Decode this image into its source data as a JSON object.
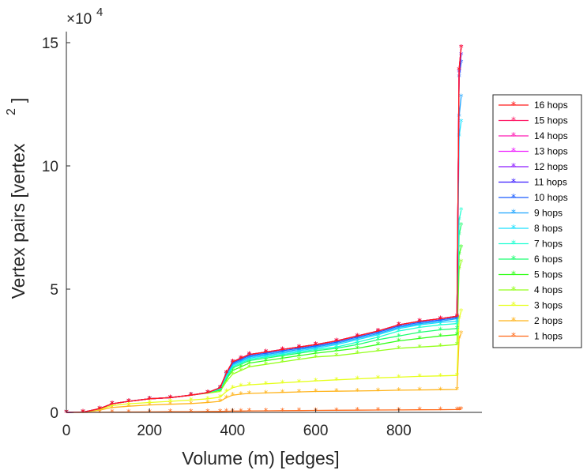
{
  "chart_data": {
    "type": "line",
    "xlabel": "Volume (m) [edges]",
    "ylabel": "Vertex pairs [vertex",
    "ylabel_sup": "2",
    "ylabel_close": "]",
    "exponent_base": "×10",
    "exponent_power": "4",
    "xlim": [
      0,
      1000
    ],
    "ylim": [
      0,
      150000
    ],
    "x_ticks": [
      "0",
      "200",
      "400",
      "600",
      "800"
    ],
    "x_tick_values": [
      0,
      200,
      400,
      600,
      800
    ],
    "y_ticks": [
      "0",
      "5",
      "10",
      "15"
    ],
    "y_tick_values": [
      0,
      50000,
      100000,
      150000
    ],
    "legend_position": "right",
    "x": [
      0,
      40,
      80,
      110,
      150,
      200,
      250,
      300,
      340,
      370,
      385,
      400,
      420,
      440,
      480,
      520,
      560,
      600,
      650,
      700,
      750,
      800,
      850,
      900,
      940,
      945,
      950
    ],
    "series": [
      {
        "name": "16 hops",
        "color": "#ff1a1a",
        "values": [
          0,
          100,
          1500,
          3500,
          4500,
          5500,
          6000,
          7000,
          8000,
          10000,
          16000,
          20500,
          22000,
          23500,
          24500,
          25500,
          26500,
          27500,
          29000,
          31000,
          33000,
          35500,
          37000,
          38000,
          39000,
          139000,
          148000
        ]
      },
      {
        "name": "15 hops",
        "color": "#ff1a66",
        "values": [
          0,
          100,
          1500,
          3500,
          4500,
          5500,
          6000,
          7000,
          8000,
          10000,
          16000,
          20500,
          22000,
          23500,
          24500,
          25500,
          26500,
          27500,
          29000,
          31000,
          33000,
          35500,
          37000,
          38000,
          39000,
          139000,
          148000
        ]
      },
      {
        "name": "14 hops",
        "color": "#ff1ab3",
        "values": [
          0,
          100,
          1500,
          3500,
          4500,
          5500,
          6000,
          7000,
          8000,
          10000,
          16000,
          20500,
          22000,
          23500,
          24500,
          25500,
          26500,
          27500,
          29000,
          31000,
          33000,
          35500,
          37000,
          38000,
          39000,
          139000,
          148000
        ]
      },
      {
        "name": "13 hops",
        "color": "#ee1aff",
        "values": [
          0,
          100,
          1500,
          3500,
          4500,
          5500,
          6000,
          7000,
          8000,
          10000,
          16000,
          20500,
          22000,
          23500,
          24500,
          25500,
          26500,
          27500,
          29000,
          31000,
          33000,
          35500,
          37000,
          38000,
          39000,
          139000,
          148000
        ]
      },
      {
        "name": "12 hops",
        "color": "#8c1aff",
        "values": [
          0,
          100,
          1500,
          3500,
          4500,
          5500,
          6000,
          7000,
          8000,
          10000,
          16000,
          20500,
          22000,
          23500,
          24500,
          25500,
          26500,
          27500,
          29000,
          31000,
          33000,
          35500,
          37000,
          38000,
          39000,
          139000,
          148000
        ]
      },
      {
        "name": "11 hops",
        "color": "#3a1aff",
        "values": [
          0,
          100,
          1500,
          3500,
          4500,
          5500,
          6000,
          7000,
          8000,
          10000,
          16000,
          20500,
          22000,
          23500,
          24500,
          25500,
          26500,
          27500,
          29000,
          31000,
          33000,
          35500,
          37000,
          38000,
          39000,
          138000,
          145000
        ]
      },
      {
        "name": "10 hops",
        "color": "#1a5cff",
        "values": [
          0,
          100,
          1500,
          3500,
          4500,
          5500,
          6000,
          7000,
          8000,
          10000,
          16000,
          20000,
          21500,
          23000,
          24000,
          25000,
          26000,
          27000,
          28500,
          30500,
          32500,
          35000,
          36500,
          37500,
          38500,
          136000,
          142000
        ]
      },
      {
        "name": "9 hops",
        "color": "#1aa3ff",
        "values": [
          0,
          100,
          1500,
          3500,
          4500,
          5500,
          6000,
          7000,
          8000,
          10000,
          15500,
          19500,
          21000,
          22500,
          23500,
          24500,
          25500,
          26500,
          28000,
          30000,
          32000,
          34500,
          36000,
          37000,
          38000,
          120000,
          128000
        ]
      },
      {
        "name": "8 hops",
        "color": "#1ae0ff",
        "values": [
          0,
          100,
          1500,
          3500,
          4500,
          5500,
          6000,
          7000,
          8000,
          9800,
          15000,
          19000,
          20500,
          22000,
          23000,
          24000,
          25000,
          26000,
          27500,
          29500,
          31500,
          34000,
          35500,
          36500,
          37000,
          112000,
          118000
        ]
      },
      {
        "name": "7 hops",
        "color": "#1affd1",
        "values": [
          0,
          100,
          1500,
          3500,
          4500,
          5500,
          6000,
          7000,
          8000,
          9500,
          14500,
          18500,
          20000,
          21500,
          22500,
          23500,
          24500,
          25500,
          26500,
          28500,
          30500,
          33000,
          34500,
          35500,
          36000,
          78000,
          82000
        ]
      },
      {
        "name": "6 hops",
        "color": "#1aff70",
        "values": [
          0,
          100,
          1500,
          3500,
          4500,
          5500,
          6000,
          7000,
          8000,
          9300,
          14000,
          18000,
          19500,
          21000,
          22000,
          23000,
          24000,
          25000,
          26000,
          27500,
          29500,
          31000,
          32500,
          33500,
          34000,
          72000,
          76000
        ]
      },
      {
        "name": "5 hops",
        "color": "#33ff1a",
        "values": [
          0,
          100,
          1500,
          3500,
          4500,
          5500,
          6000,
          7000,
          8000,
          9000,
          13500,
          17000,
          18500,
          20000,
          21000,
          22000,
          23000,
          24000,
          25000,
          26000,
          27500,
          29000,
          30000,
          31000,
          31500,
          64000,
          67000
        ]
      },
      {
        "name": "4 hops",
        "color": "#94ff1a",
        "values": [
          0,
          100,
          1500,
          3500,
          4500,
          5500,
          6000,
          7000,
          7800,
          8500,
          12500,
          15500,
          17000,
          18500,
          19500,
          20500,
          21500,
          22500,
          23000,
          24000,
          25000,
          26000,
          26500,
          27000,
          27500,
          58000,
          61000
        ]
      },
      {
        "name": "3 hops",
        "color": "#e6ff1a",
        "values": [
          0,
          100,
          1200,
          2800,
          3500,
          4000,
          4500,
          5000,
          5500,
          6200,
          8500,
          10000,
          10800,
          11200,
          11600,
          12000,
          12400,
          12800,
          13200,
          13600,
          14000,
          14300,
          14600,
          14800,
          15000,
          38000,
          41000
        ]
      },
      {
        "name": "2 hops",
        "color": "#ffb31a",
        "values": [
          0,
          80,
          900,
          2000,
          2500,
          3000,
          3300,
          3600,
          4000,
          4500,
          6000,
          7000,
          7400,
          7700,
          7900,
          8100,
          8300,
          8500,
          8600,
          8700,
          8800,
          9000,
          9100,
          9200,
          9300,
          30000,
          32000
        ]
      },
      {
        "name": "1 hops",
        "color": "#ff6a1a",
        "values": [
          0,
          10,
          50,
          100,
          150,
          200,
          250,
          300,
          350,
          400,
          450,
          500,
          550,
          600,
          650,
          700,
          750,
          800,
          850,
          900,
          950,
          1000,
          1050,
          1100,
          1150,
          1200,
          1250
        ]
      }
    ]
  }
}
